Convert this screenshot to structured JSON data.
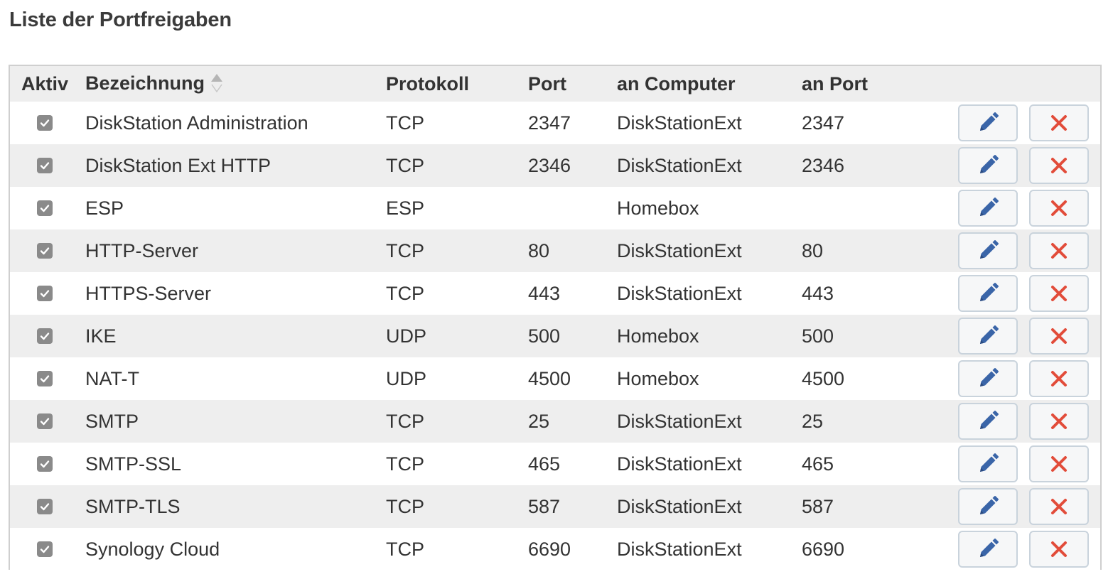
{
  "page_title": "Liste der Portfreigaben",
  "columns": {
    "aktiv": "Aktiv",
    "bezeichnung": "Bezeichnung",
    "protokoll": "Protokoll",
    "port": "Port",
    "an_computer": "an Computer",
    "an_port": "an Port"
  },
  "sort": {
    "column": "bezeichnung",
    "icon": "sort-icon"
  },
  "colors": {
    "edit_icon": "#3a65a8",
    "delete_icon": "#e24c3a",
    "checkbox": "#8a8a8a",
    "row_alt": "#eeeeee"
  },
  "rows": [
    {
      "aktiv": true,
      "bezeichnung": "DiskStation Administration",
      "protokoll": "TCP",
      "port": "2347",
      "an_computer": "DiskStationExt",
      "an_port": "2347"
    },
    {
      "aktiv": true,
      "bezeichnung": "DiskStation Ext HTTP",
      "protokoll": "TCP",
      "port": "2346",
      "an_computer": "DiskStationExt",
      "an_port": "2346"
    },
    {
      "aktiv": true,
      "bezeichnung": "ESP",
      "protokoll": "ESP",
      "port": "",
      "an_computer": "Homebox",
      "an_port": ""
    },
    {
      "aktiv": true,
      "bezeichnung": "HTTP-Server",
      "protokoll": "TCP",
      "port": "80",
      "an_computer": "DiskStationExt",
      "an_port": "80"
    },
    {
      "aktiv": true,
      "bezeichnung": "HTTPS-Server",
      "protokoll": "TCP",
      "port": "443",
      "an_computer": "DiskStationExt",
      "an_port": "443"
    },
    {
      "aktiv": true,
      "bezeichnung": "IKE",
      "protokoll": "UDP",
      "port": "500",
      "an_computer": "Homebox",
      "an_port": "500"
    },
    {
      "aktiv": true,
      "bezeichnung": "NAT-T",
      "protokoll": "UDP",
      "port": "4500",
      "an_computer": "Homebox",
      "an_port": "4500"
    },
    {
      "aktiv": true,
      "bezeichnung": "SMTP",
      "protokoll": "TCP",
      "port": "25",
      "an_computer": "DiskStationExt",
      "an_port": "25"
    },
    {
      "aktiv": true,
      "bezeichnung": "SMTP-SSL",
      "protokoll": "TCP",
      "port": "465",
      "an_computer": "DiskStationExt",
      "an_port": "465"
    },
    {
      "aktiv": true,
      "bezeichnung": "SMTP-TLS",
      "protokoll": "TCP",
      "port": "587",
      "an_computer": "DiskStationExt",
      "an_port": "587"
    },
    {
      "aktiv": true,
      "bezeichnung": "Synology Cloud",
      "protokoll": "TCP",
      "port": "6690",
      "an_computer": "DiskStationExt",
      "an_port": "6690"
    }
  ]
}
